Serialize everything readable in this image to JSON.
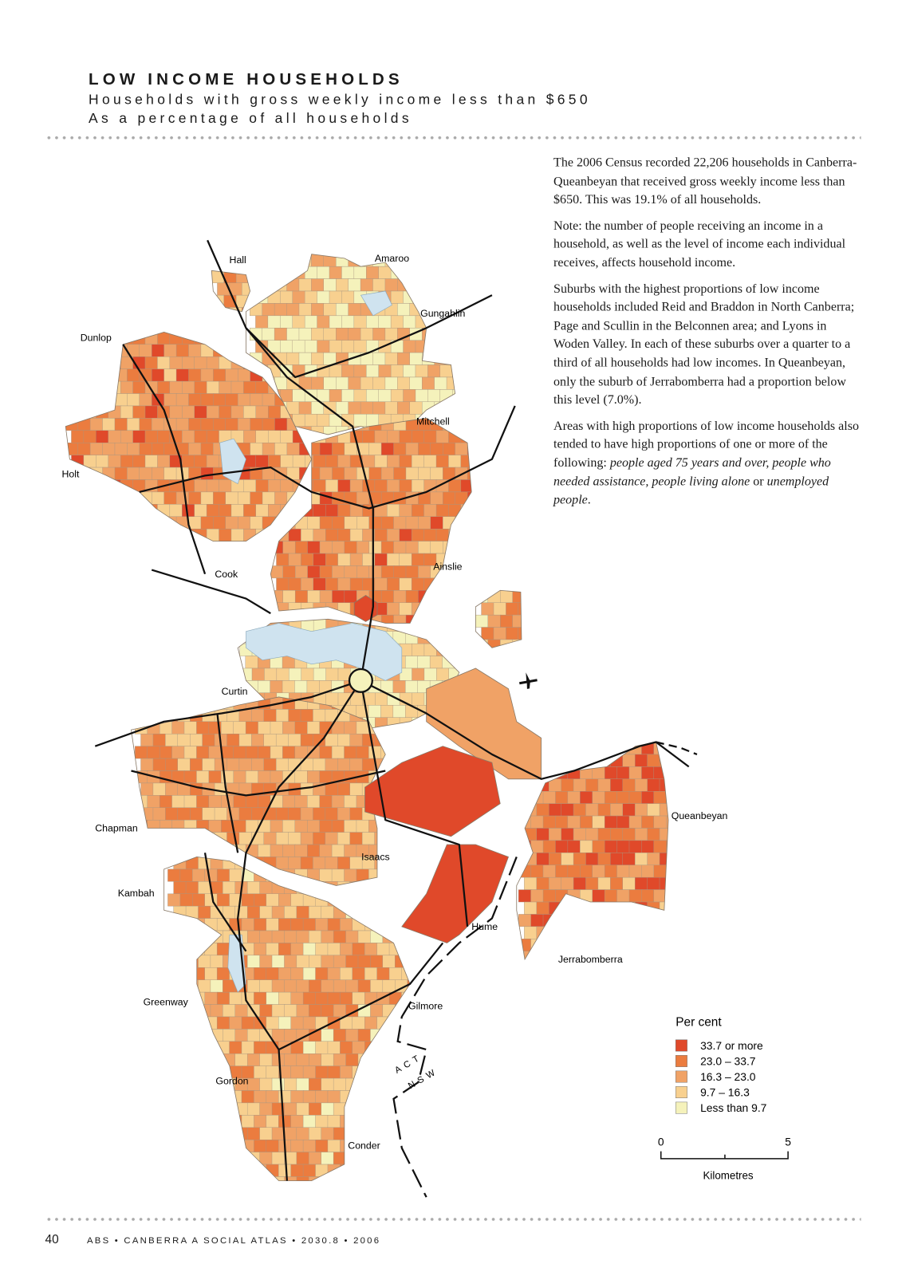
{
  "header": {
    "title": "LOW INCOME HOUSEHOLDS",
    "subtitle": [
      "Households with gross weekly income less than $650",
      "As a percentage of all households"
    ]
  },
  "body": {
    "paragraphs": [
      [
        {
          "text": "The 2006 Census recorded 22,206 households in Canberra-Queanbeyan that received gross weekly income less than $650. This was 19.1% of all households.",
          "italic": false
        }
      ],
      [
        {
          "text": "Note: the number of people receiving an income in a household, as well as the level of income each individual receives, affects household income.",
          "italic": false
        }
      ],
      [
        {
          "text": "Suburbs with the highest proportions of low income households included Reid and Braddon in North Canberra; Page and Scullin in the Belconnen area; and Lyons in Woden Valley. In each of these suburbs over a quarter to a third of all households had low incomes. In Queanbeyan, only the suburb of Jerrabomberra had a proportion below this level (7.0%).",
          "italic": false
        }
      ],
      [
        {
          "text": "Areas with high proportions of low income households also tended to have high proportions of one or more of the following: ",
          "italic": false
        },
        {
          "text": "people aged 75 years and over, people who needed assistance, people living alone",
          "italic": true
        },
        {
          "text": " or ",
          "italic": false
        },
        {
          "text": "unemployed people",
          "italic": true
        },
        {
          "text": ".",
          "italic": false
        }
      ]
    ]
  },
  "map": {
    "places": [
      "Hall",
      "Amaroo",
      "Gungahlin",
      "Dunlop",
      "Mitchell",
      "Holt",
      "Cook",
      "Ainslie",
      "Curtin",
      "Chapman",
      "Isaacs",
      "Queanbeyan",
      "Kambah",
      "Hume",
      "Jerrabomberra",
      "Greenway",
      "Gilmore",
      "Gordon",
      "Conder"
    ],
    "border_labels": [
      "ACT",
      "NSW"
    ]
  },
  "legend": {
    "title": "Per cent",
    "items": [
      {
        "label": "33.7 or more",
        "color": "#e0492a"
      },
      {
        "label": "23.0 – 33.7",
        "color": "#eb7c3f"
      },
      {
        "label": "16.3 – 23.0",
        "color": "#f0a266"
      },
      {
        "label": "9.7 – 16.3",
        "color": "#f8d08f"
      },
      {
        "label": "Less than 9.7",
        "color": "#f5f2bb"
      }
    ]
  },
  "scale_bar": {
    "start": 0,
    "end": 5,
    "unit": "Kilometres"
  },
  "footer": {
    "page": 40,
    "publication": "ABS • CANBERRA A SOCIAL ATLAS • 2030.8 • 2006"
  }
}
